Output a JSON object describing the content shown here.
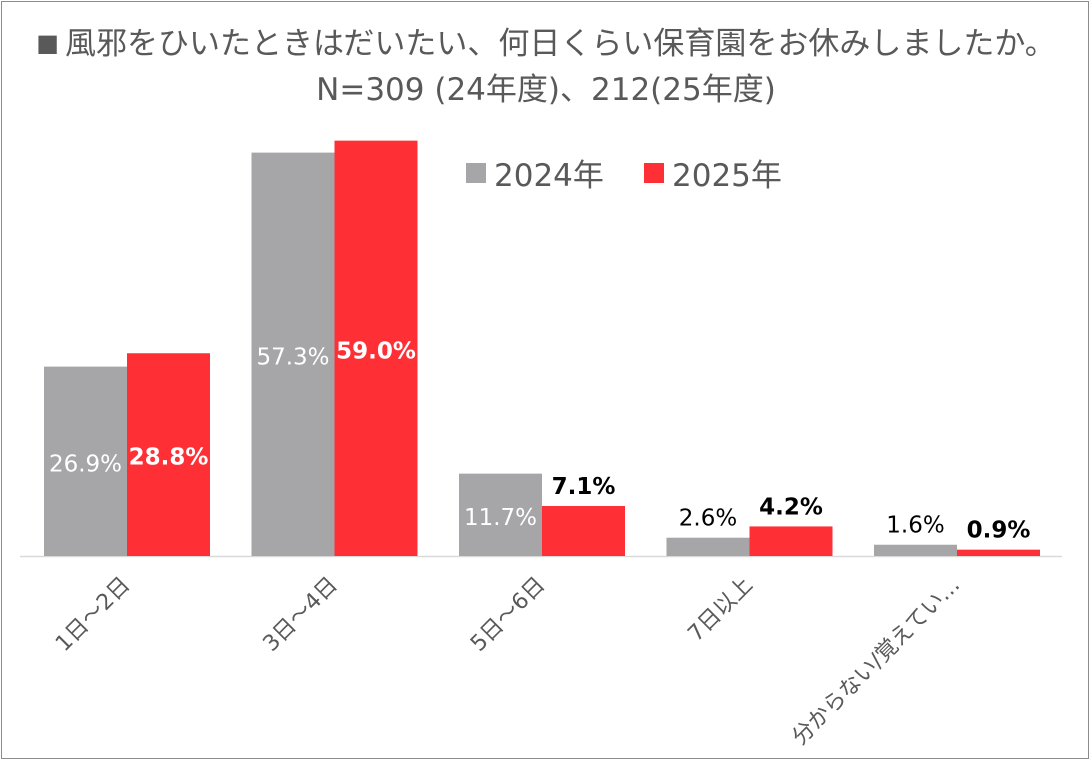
{
  "title": {
    "marker": "■",
    "line1": "風邪をひいたときはだいたい、何日くらい保育園をお休みしましたか。",
    "line2": "N=309 (24年度)、212(25年度)"
  },
  "colors": {
    "series_2024": "#a6a5a8",
    "series_2025": "#ff2f36",
    "axis": "#d9d9d9",
    "label_dark": "#000000",
    "label_light": "#ffffff",
    "category_text": "#595959"
  },
  "chart_data": {
    "type": "bar",
    "categories": [
      "1日～2日",
      "3日～4日",
      "5日～6日",
      "7日以上",
      "分からない/覚えてい…"
    ],
    "series": [
      {
        "name": "2024年",
        "values": [
          26.9,
          57.3,
          11.7,
          2.6,
          1.6
        ],
        "labels": [
          "26.9%",
          "57.3%",
          "11.7%",
          "2.6%",
          "1.6%"
        ]
      },
      {
        "name": "2025年",
        "values": [
          28.8,
          59.0,
          7.1,
          4.2,
          0.9
        ],
        "labels": [
          "28.8%",
          "59.0%",
          "7.1%",
          "4.2%",
          "0.9%"
        ]
      }
    ],
    "ylim": [
      0,
      60
    ],
    "grid": false,
    "legend": "top-right"
  }
}
